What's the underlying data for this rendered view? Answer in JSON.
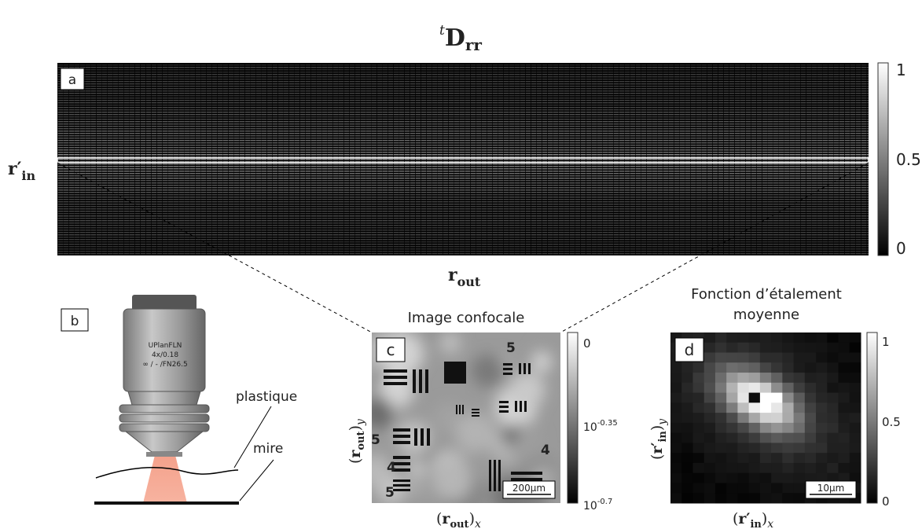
{
  "title": {
    "sup": "t",
    "main": "D",
    "sub": "rr"
  },
  "panel_a": {
    "label": "a",
    "y_label": {
      "main": "r′",
      "sub": "in"
    },
    "x_label": {
      "main": "r",
      "sub": "out"
    },
    "colorbar_ticks": [
      "1",
      "0.5",
      "0"
    ]
  },
  "panel_b": {
    "label": "b",
    "objective": [
      "UPlanFLN",
      "4x/0.18",
      "∞ / - /FN26.5"
    ],
    "annotations": [
      "plastique",
      "mire"
    ]
  },
  "panel_c": {
    "label": "c",
    "title": "Image confocale",
    "x_label": {
      "open": "(",
      "main": "r",
      "sub": "out",
      "close": ")",
      "axis": "x"
    },
    "y_label": {
      "open": "(",
      "main": "r",
      "sub": "out",
      "close": ")",
      "axis": "y"
    },
    "colorbar_ticks": [
      {
        "text": "0"
      },
      {
        "base": "10",
        "exponent": "-0.35"
      },
      {
        "base": "10",
        "exponent": "-0.7"
      }
    ],
    "scale_bar": "200µm",
    "target_digits": [
      "5",
      "4",
      "5",
      "4",
      "5",
      "4"
    ]
  },
  "panel_d": {
    "label": "d",
    "title": [
      "Fonction d’étalement",
      "moyenne"
    ],
    "x_label": {
      "open": "(",
      "main": "r′",
      "sub": "in",
      "close": ")",
      "axis": "x"
    },
    "y_label": {
      "open": "(",
      "main": "r′",
      "sub": "in",
      "close": ")",
      "axis": "y"
    },
    "colorbar_ticks": [
      "1",
      "0.5",
      "0"
    ],
    "scale_bar": "10µm"
  }
}
